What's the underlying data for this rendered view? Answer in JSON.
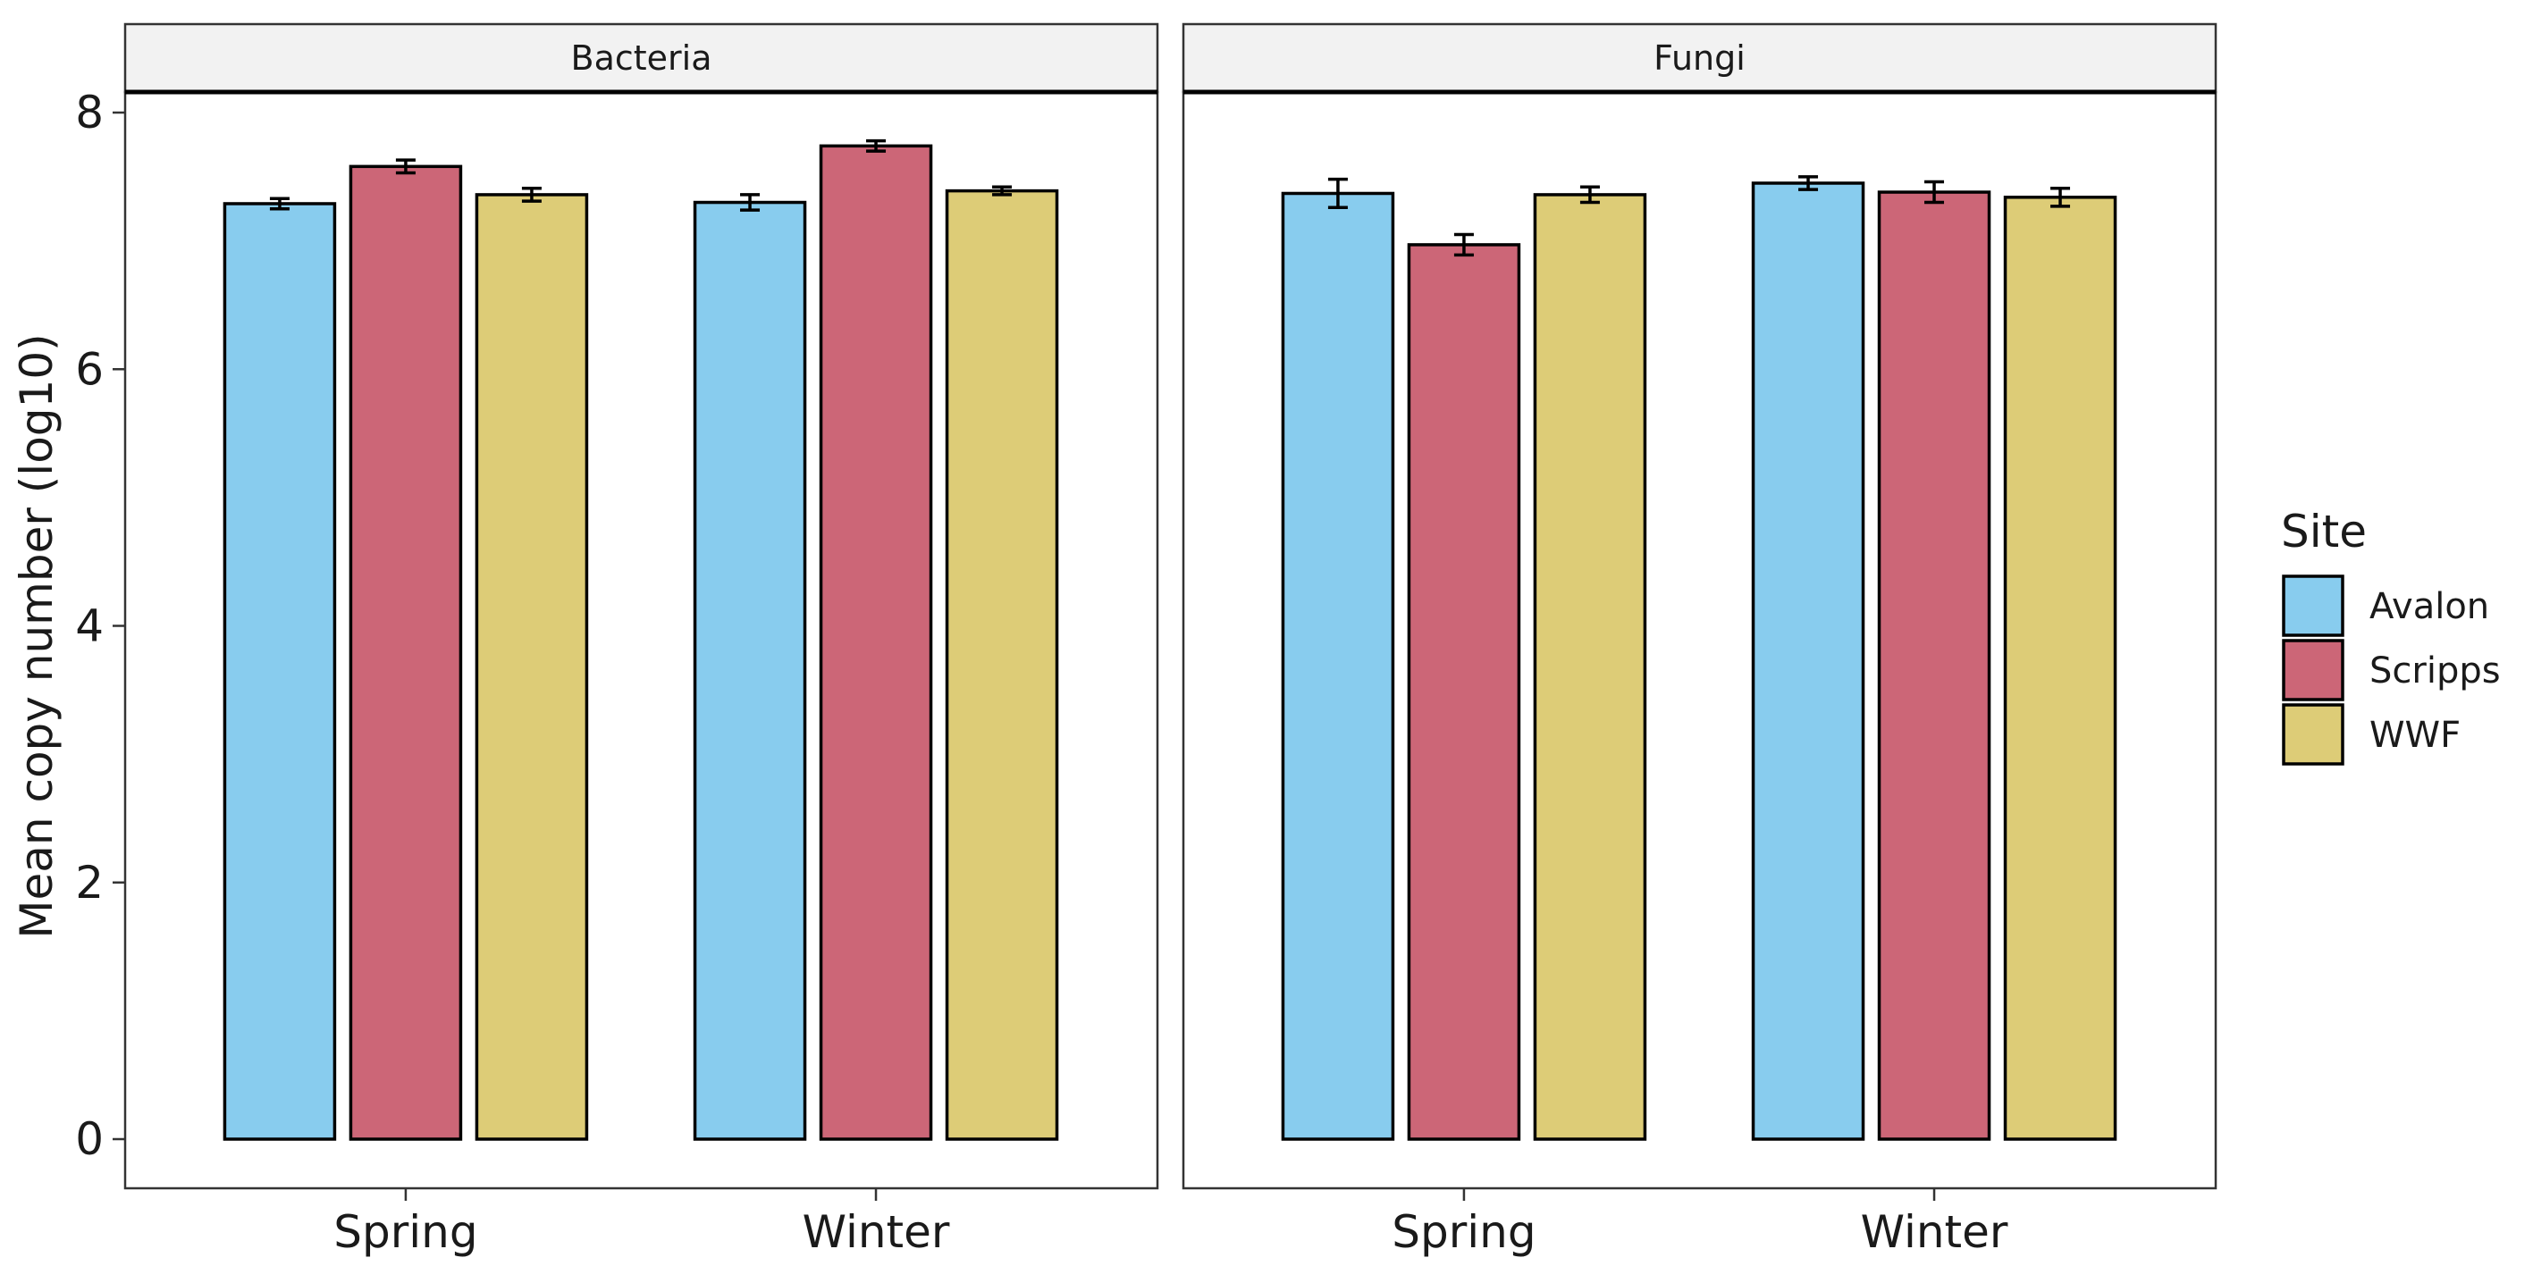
{
  "chart_data": {
    "type": "bar",
    "ylabel": "Mean copy number (log10)",
    "xlabel": "",
    "ylim": [
      0,
      8
    ],
    "yticks": [
      0,
      2,
      4,
      6,
      8
    ],
    "categories": [
      "Spring",
      "Winter"
    ],
    "grid": false,
    "legend": {
      "title": "Site",
      "placement": "right",
      "entries": [
        {
          "name": "Avalon",
          "color": "#88CCEE"
        },
        {
          "name": "Scripps",
          "color": "#CC6677"
        },
        {
          "name": "WWF",
          "color": "#DDCC77"
        }
      ]
    },
    "panels": [
      {
        "title": "Bacteria",
        "series": [
          {
            "name": "Avalon",
            "values": [
              7.29,
              7.3
            ],
            "errors": [
              0.04,
              0.06
            ]
          },
          {
            "name": "Scripps",
            "values": [
              7.58,
              7.74
            ],
            "errors": [
              0.05,
              0.04
            ]
          },
          {
            "name": "WWF",
            "values": [
              7.36,
              7.39
            ],
            "errors": [
              0.05,
              0.03
            ]
          }
        ]
      },
      {
        "title": "Fungi",
        "series": [
          {
            "name": "Avalon",
            "values": [
              7.37,
              7.45
            ],
            "errors": [
              0.11,
              0.05
            ]
          },
          {
            "name": "Scripps",
            "values": [
              6.97,
              7.38
            ],
            "errors": [
              0.08,
              0.08
            ]
          },
          {
            "name": "WWF",
            "values": [
              7.36,
              7.34
            ],
            "errors": [
              0.06,
              0.07
            ]
          }
        ]
      }
    ]
  }
}
